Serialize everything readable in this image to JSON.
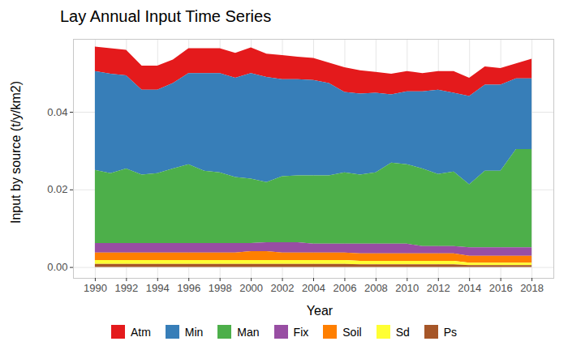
{
  "chart_data": {
    "type": "area",
    "title": "Lay Annual Input Time Series",
    "x_label": "Year",
    "y_label": "Input by source (t/y/km2)",
    "stacked": true,
    "grid": true,
    "legend": "bottom",
    "x": [
      1990,
      1991,
      1992,
      1993,
      1994,
      1995,
      1996,
      1997,
      1998,
      1999,
      2000,
      2001,
      2002,
      2003,
      2004,
      2005,
      2006,
      2007,
      2008,
      2009,
      2010,
      2011,
      2012,
      2013,
      2014,
      2015,
      2016,
      2017,
      2018
    ],
    "xlim": [
      1988.6,
      2019.4
    ],
    "xticks": [
      1990,
      1992,
      1994,
      1996,
      1998,
      2000,
      2002,
      2004,
      2006,
      2008,
      2010,
      2012,
      2014,
      2016,
      2018
    ],
    "ylim": [
      -0.0028,
      0.0588
    ],
    "yticks": [
      {
        "value": 0,
        "label": "0.00"
      },
      {
        "value": 0.02,
        "label": "0.02"
      },
      {
        "value": 0.04,
        "label": "0.04"
      }
    ],
    "series": [
      {
        "name": "Atm",
        "color": "#E41A1C",
        "values": [
          0.0063,
          0.0066,
          0.0066,
          0.0062,
          0.0062,
          0.0061,
          0.0064,
          0.0064,
          0.0064,
          0.0064,
          0.0066,
          0.006,
          0.0062,
          0.0058,
          0.0057,
          0.0053,
          0.0064,
          0.006,
          0.0054,
          0.0053,
          0.0052,
          0.0047,
          0.0048,
          0.0056,
          0.0047,
          0.0047,
          0.0043,
          0.0039,
          0.0051
        ]
      },
      {
        "name": "Min",
        "color": "#377EB8",
        "values": [
          0.0255,
          0.0256,
          0.024,
          0.0219,
          0.0215,
          0.022,
          0.0235,
          0.0252,
          0.0256,
          0.0256,
          0.0272,
          0.0271,
          0.025,
          0.0248,
          0.0246,
          0.0238,
          0.0207,
          0.0209,
          0.0205,
          0.0176,
          0.0188,
          0.0199,
          0.0217,
          0.0203,
          0.0228,
          0.0222,
          0.0222,
          0.0182,
          0.0182
        ]
      },
      {
        "name": "Man",
        "color": "#4DAF4A",
        "values": [
          0.0188,
          0.018,
          0.0192,
          0.0176,
          0.018,
          0.0192,
          0.0203,
          0.0186,
          0.0182,
          0.017,
          0.0166,
          0.0155,
          0.017,
          0.0172,
          0.0176,
          0.0176,
          0.0184,
          0.0178,
          0.0184,
          0.0209,
          0.0205,
          0.02,
          0.0186,
          0.0192,
          0.0162,
          0.0197,
          0.0197,
          0.0253,
          0.0253
        ]
      },
      {
        "name": "Fix",
        "color": "#984EA3",
        "values": [
          0.0025,
          0.0025,
          0.0025,
          0.0025,
          0.0025,
          0.0025,
          0.0025,
          0.0025,
          0.0025,
          0.0025,
          0.0021,
          0.0023,
          0.0027,
          0.0027,
          0.0023,
          0.0023,
          0.0023,
          0.0025,
          0.0025,
          0.0025,
          0.0025,
          0.0019,
          0.0019,
          0.0019,
          0.0022,
          0.0022,
          0.0022,
          0.0022,
          0.0022
        ]
      },
      {
        "name": "Soil",
        "color": "#FF7F00",
        "values": [
          0.0019,
          0.0019,
          0.0019,
          0.0019,
          0.0019,
          0.0019,
          0.0019,
          0.0019,
          0.0019,
          0.0019,
          0.0023,
          0.0023,
          0.0019,
          0.0019,
          0.0019,
          0.0019,
          0.0019,
          0.0019,
          0.0019,
          0.0019,
          0.0019,
          0.0019,
          0.0019,
          0.0019,
          0.0018,
          0.0018,
          0.0018,
          0.0018,
          0.0018
        ]
      },
      {
        "name": "Sd",
        "color": "#FFFF33",
        "values": [
          0.001,
          0.001,
          0.001,
          0.001,
          0.001,
          0.001,
          0.001,
          0.001,
          0.001,
          0.001,
          0.001,
          0.001,
          0.001,
          0.001,
          0.001,
          0.001,
          0.001,
          0.0009,
          0.0009,
          0.0009,
          0.0009,
          0.0009,
          0.0009,
          0.0009,
          0.0006,
          0.0006,
          0.0006,
          0.0006,
          0.0006
        ]
      },
      {
        "name": "Ps",
        "color": "#A65628",
        "values": [
          0.0008,
          0.0008,
          0.0008,
          0.0008,
          0.0008,
          0.0008,
          0.0008,
          0.0008,
          0.0008,
          0.0008,
          0.0008,
          0.0008,
          0.0008,
          0.0008,
          0.0008,
          0.0008,
          0.0008,
          0.0007,
          0.0007,
          0.0007,
          0.0007,
          0.0007,
          0.0007,
          0.0007,
          0.0005,
          0.0005,
          0.0005,
          0.0005,
          0.0005
        ]
      }
    ]
  }
}
